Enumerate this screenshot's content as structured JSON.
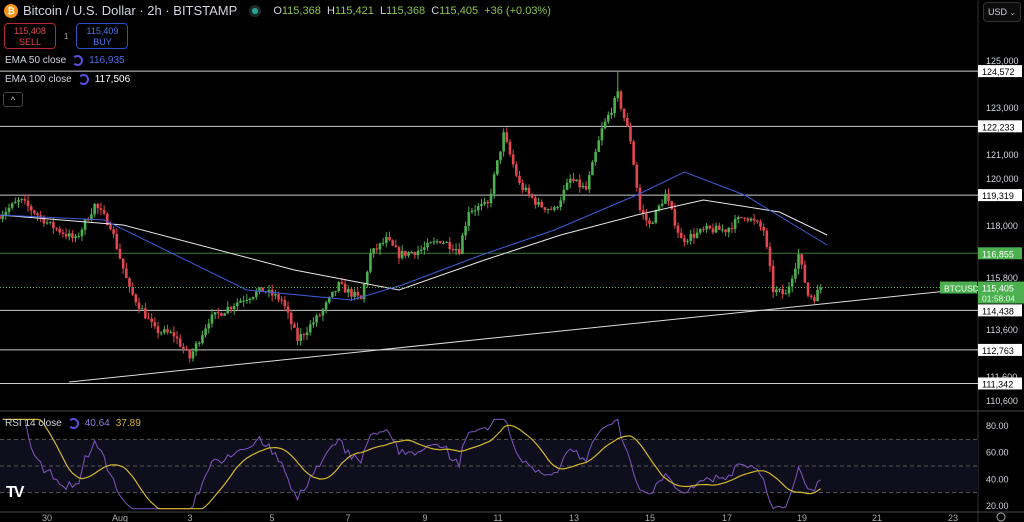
{
  "header": {
    "title": "Bitcoin / U.S. Dollar · 2h · BITSTAMP",
    "open": "115,368",
    "high": "115,421",
    "low": "115,368",
    "close": "115,405",
    "change": "+36 (+0.03%)",
    "o_label": "O",
    "h_label": "H",
    "l_label": "L",
    "c_label": "C"
  },
  "trade": {
    "sell_price": "115,408",
    "sell_label": "SELL",
    "qty": "1",
    "buy_price": "115,409",
    "buy_label": "BUY"
  },
  "indicators": [
    {
      "label": "EMA 50 close",
      "value": "116,935",
      "color": "#3f5bd8"
    },
    {
      "label": "EMA 100 close",
      "value": "117,506",
      "color": "#e0e0e0"
    }
  ],
  "rsi_legend": {
    "label": "RSI 14 close",
    "value": "40.64",
    "ma_value": "37.89"
  },
  "currency": "USD",
  "symbol_tag": "BTCUSD",
  "countdown": "01:58:04",
  "colors": {
    "up": "#4caf50",
    "down": "#e0474e",
    "ema50": "#3f5bd8",
    "ema100": "#e8e8e8",
    "rsi": "#7e57c2",
    "rsi_ma": "#d4b72a",
    "highlight": "#4caf50"
  },
  "chart_data": {
    "type": "candlestick",
    "interval": "2h",
    "price_ticks": [
      "125,000",
      "123,000",
      "121,000",
      "120,000",
      "118,000",
      "115,800",
      "113,600",
      "111,600",
      "110,600"
    ],
    "rsi_ticks": [
      "80.00",
      "60.00",
      "40.00",
      "20.00"
    ],
    "time_ticks": [
      "30",
      "Aug",
      "3",
      "5",
      "7",
      "9",
      "11",
      "13",
      "15",
      "17",
      "19",
      "21",
      "23"
    ],
    "horizontal_levels": [
      "124,572",
      "122,233",
      "119,319",
      "116,855",
      "114,438",
      "112,763",
      "111,342"
    ],
    "highlight_level": "116,855",
    "last_price": "115,405",
    "period_high": 124572,
    "close_path": [
      [
        "07-28 18",
        118480
      ],
      [
        "07-29 07",
        119100
      ],
      [
        "07-30 02",
        118050
      ],
      [
        "07-30 18",
        117420
      ],
      [
        "07-31 06",
        118900
      ],
      [
        "07-31 16",
        118050
      ],
      [
        "08-01 04",
        115300
      ],
      [
        "08-01 20",
        113600
      ],
      [
        "08-02 08",
        113400
      ],
      [
        "08-02 18",
        112420
      ],
      [
        "08-03 06",
        114030
      ],
      [
        "08-04 02",
        114880
      ],
      [
        "08-04 16",
        115300
      ],
      [
        "08-05 04",
        114880
      ],
      [
        "08-05 14",
        113200
      ],
      [
        "08-06 04",
        114240
      ],
      [
        "08-06 16",
        115500
      ],
      [
        "08-07 06",
        114880
      ],
      [
        "08-07 12",
        116800
      ],
      [
        "08-07 22",
        117420
      ],
      [
        "08-08 06",
        116800
      ],
      [
        "08-08 20",
        117000
      ],
      [
        "08-09 08",
        117420
      ],
      [
        "08-09 20",
        117000
      ],
      [
        "08-10 02",
        118690
      ],
      [
        "08-10 14",
        118900
      ],
      [
        "08-11 00",
        121870
      ],
      [
        "08-11 10",
        119760
      ],
      [
        "08-11 22",
        118900
      ],
      [
        "08-12 08",
        118690
      ],
      [
        "08-12 18",
        119970
      ],
      [
        "08-13 04",
        119550
      ],
      [
        "08-13 14",
        122080
      ],
      [
        "08-14 00",
        123560
      ],
      [
        "08-14 08",
        121660
      ],
      [
        "08-14 14",
        118690
      ],
      [
        "08-14 20",
        118050
      ],
      [
        "08-15 06",
        119330
      ],
      [
        "08-15 16",
        117420
      ],
      [
        "08-16 08",
        117850
      ],
      [
        "08-16 20",
        117850
      ],
      [
        "08-17 08",
        118480
      ],
      [
        "08-17 20",
        117850
      ],
      [
        "08-18 02",
        115300
      ],
      [
        "08-18 10",
        115090
      ],
      [
        "08-18 18",
        116800
      ],
      [
        "08-19 00",
        115090
      ],
      [
        "08-19 04",
        115000
      ],
      [
        "08-19 08",
        115405
      ]
    ],
    "ema50": [
      [
        "07-28 18",
        118478
      ],
      [
        "07-31 12",
        118266
      ],
      [
        "08-04 06",
        115301
      ],
      [
        "08-07 00",
        114878
      ],
      [
        "08-08 08",
        115513
      ],
      [
        "08-10 10",
        116783
      ],
      [
        "08-12 08",
        117842
      ],
      [
        "08-14 12",
        119325
      ],
      [
        "08-15 18",
        120299
      ],
      [
        "08-17 08",
        119325
      ],
      [
        "08-19 12",
        117207
      ]
    ],
    "ema100": [
      [
        "07-28 18",
        118478
      ],
      [
        "08-01 00",
        118054
      ],
      [
        "08-05 12",
        116148
      ],
      [
        "08-08 06",
        115301
      ],
      [
        "08-10 12",
        116571
      ],
      [
        "08-12 12",
        117630
      ],
      [
        "08-14 12",
        118478
      ],
      [
        "08-16 06",
        119113
      ],
      [
        "08-18 06",
        118605
      ],
      [
        "08-19 12",
        117630
      ]
    ],
    "trendline": [
      [
        "07-30 14",
        111404
      ],
      [
        "08-23 10",
        115385
      ]
    ],
    "rsi_overbought": 70,
    "rsi_oversold": 30,
    "rsi_mid": 50
  }
}
